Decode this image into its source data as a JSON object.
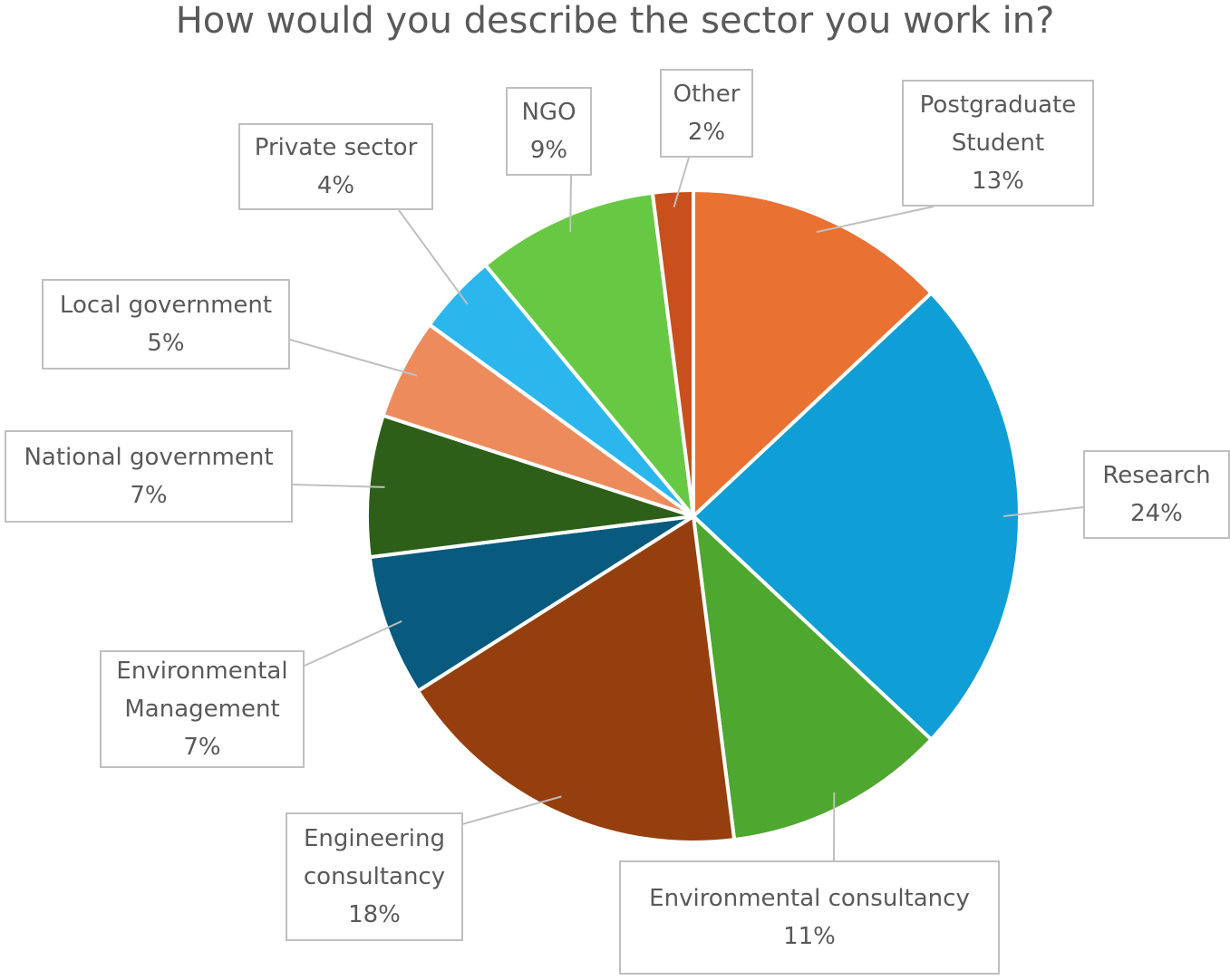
{
  "chart_data": {
    "type": "pie",
    "title": "How would you describe the sector you work in?",
    "categories": [
      "Postgraduate Student",
      "Research",
      "Environmental consultancy",
      "Engineering consultancy",
      "Environmental Management",
      "National government",
      "Local government",
      "Private sector",
      "NGO",
      "Other"
    ],
    "values": [
      13,
      24,
      11,
      18,
      7,
      7,
      5,
      4,
      9,
      2
    ],
    "value_labels": [
      "13%",
      "24%",
      "11%",
      "18%",
      "7%",
      "7%",
      "5%",
      "4%",
      "9%",
      "2%"
    ],
    "colors": [
      "#e97132",
      "#0f9ed5",
      "#4ea72e",
      "#953f0e",
      "#085a7e",
      "#2d5f19",
      "#ee8b5c",
      "#2cb6ee",
      "#67c943",
      "#c9501c"
    ]
  }
}
